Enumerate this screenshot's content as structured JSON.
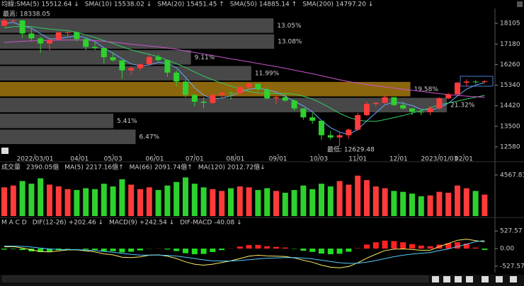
{
  "chart_data": [
    {
      "type": "candlestick",
      "header": "均線:",
      "series": [
        {
          "name": "SMA(5)",
          "reading": "15512.64 ↓",
          "color": "#ffffff"
        },
        {
          "name": "SMA(10)",
          "reading": "15538.02 ↓",
          "color": "#ff66cc"
        },
        {
          "name": "SMA(20)",
          "reading": "15451.45 ↑",
          "color": "#66aaff",
          "values": [
            18100,
            18150,
            17990,
            17890,
            17630,
            17410,
            17420,
            17490,
            17540,
            17460,
            17290,
            17010,
            16770,
            16520,
            16290,
            16200,
            16240,
            16360,
            16310,
            16120,
            15690,
            15230,
            14890,
            14740,
            14760,
            14860,
            15030,
            15160,
            15200,
            15140,
            15030,
            14840,
            14630,
            14410,
            14150,
            13760,
            13440,
            13240,
            13140,
            13360,
            13740,
            14100,
            14460,
            14580,
            14530,
            14430,
            14260,
            14230,
            14330,
            14530,
            14860,
            15160,
            15340,
            15451.45
          ]
        },
        {
          "name": "SMA(50)",
          "reading": "14885.14 ↑",
          "color": "#33cc66",
          "values": [
            17900,
            17950,
            17970,
            17960,
            17900,
            17850,
            17810,
            17780,
            17700,
            17590,
            17470,
            17330,
            17210,
            17050,
            16920,
            16810,
            16720,
            16610,
            16460,
            16300,
            16130,
            15930,
            15740,
            15580,
            15430,
            15300,
            15170,
            15060,
            14990,
            14970,
            14970,
            14970,
            14940,
            14840,
            14720,
            14530,
            14310,
            14080,
            13900,
            13780,
            13730,
            13720,
            13800,
            13890,
            13980,
            14090,
            14200,
            14330,
            14460,
            14540,
            14630,
            14720,
            14800,
            14885.14
          ]
        },
        {
          "name": "SMA(200)",
          "reading": "14797.20 ↓",
          "color": "#cc55cc",
          "values": [
            17250,
            17280,
            17300,
            17320,
            17330,
            17340,
            17350,
            17360,
            17360,
            17350,
            17330,
            17300,
            17260,
            17220,
            17170,
            17130,
            17090,
            17050,
            17000,
            16940,
            16870,
            16800,
            16730,
            16660,
            16590,
            16520,
            16450,
            16380,
            16310,
            16240,
            16170,
            16090,
            16010,
            15930,
            15850,
            15760,
            15670,
            15580,
            15500,
            15430,
            15370,
            15310,
            15260,
            15210,
            15160,
            15110,
            15060,
            15010,
            14960,
            14920,
            14880,
            14850,
            14820,
            14797.2
          ]
        }
      ],
      "open": [
        18000,
        18230,
        18232,
        17650,
        17430,
        17200,
        17370,
        17690,
        17700,
        17400,
        17050,
        17000,
        16590,
        16450,
        16000,
        16100,
        16270,
        16600,
        16460,
        15900,
        15500,
        14900,
        14600,
        14550,
        14900,
        15000,
        14980,
        15250,
        15400,
        15150,
        14750,
        14800,
        14650,
        14300,
        13900,
        13750,
        13100,
        13000,
        13100,
        13350,
        14000,
        14500,
        14550,
        14800,
        14450,
        14300,
        14150,
        14137,
        14300,
        14750,
        14930,
        15450,
        15500,
        15480
      ],
      "high": [
        18338.05,
        18290,
        18260,
        17900,
        17500,
        17400,
        17750,
        17800,
        17740,
        17450,
        17250,
        17000,
        16800,
        16450,
        16200,
        16300,
        16700,
        16700,
        16460,
        16000,
        15600,
        14950,
        14800,
        14960,
        15050,
        15050,
        15300,
        15460,
        15400,
        15250,
        14850,
        15000,
        14700,
        14300,
        14100,
        13750,
        13300,
        13200,
        13400,
        14100,
        14600,
        14600,
        14900,
        14800,
        14600,
        14300,
        14250,
        14400,
        14800,
        15000,
        15500,
        15600,
        15560,
        15570
      ],
      "low": [
        17950,
        18100,
        17450,
        17300,
        16780,
        16900,
        17350,
        17500,
        17300,
        16900,
        16900,
        16300,
        16400,
        15620,
        15800,
        16000,
        16250,
        16400,
        15700,
        15300,
        14800,
        14400,
        14300,
        14500,
        14750,
        14700,
        14900,
        15200,
        15050,
        14700,
        14500,
        14600,
        14200,
        13800,
        13600,
        12900,
        12900,
        12629.48,
        12950,
        13300,
        13950,
        14400,
        14500,
        14400,
        14250,
        14000,
        14000,
        14000,
        14250,
        14700,
        14900,
        15300,
        15400,
        15450
      ],
      "close": [
        18230,
        18232,
        17650,
        17430,
        17200,
        17370,
        17690,
        17700,
        17400,
        17050,
        17000,
        16590,
        16450,
        16000,
        16100,
        16270,
        16600,
        16460,
        15900,
        15500,
        14900,
        14600,
        14550,
        14900,
        15000,
        14980,
        15250,
        15400,
        15150,
        14750,
        14800,
        14650,
        14300,
        13900,
        13750,
        13100,
        13000,
        13100,
        13350,
        14000,
        14500,
        14550,
        14800,
        14450,
        14300,
        14150,
        14137,
        14300,
        14750,
        14930,
        15450,
        15500,
        15480,
        15512.64
      ],
      "up_color": "#ff3b3b",
      "down_color": "#2ed12e",
      "ylim": [
        12264,
        18768
      ],
      "yticks": [
        12580,
        13500,
        14420,
        15340,
        16260,
        17180,
        18105
      ],
      "xticks": [
        {
          "value": 3.4,
          "label": "2022/03/01"
        },
        {
          "value": 8.3,
          "label": "04/01"
        },
        {
          "value": 12.0,
          "label": "05/03"
        },
        {
          "value": 16.6,
          "label": "06/01"
        },
        {
          "value": 21.0,
          "label": "07/01"
        },
        {
          "value": 25.5,
          "label": "08/01"
        },
        {
          "value": 30.2,
          "label": "09/01"
        },
        {
          "value": 34.7,
          "label": "10/03"
        },
        {
          "value": 39.0,
          "label": "11/01"
        },
        {
          "value": 43.5,
          "label": "12/01"
        },
        {
          "value": 48.0,
          "label": "2023/01/03"
        },
        {
          "value": 50.7,
          "label": "02/01"
        }
      ],
      "annotations": [
        {
          "text": "最高: 18338.05",
          "color": "#ff4444"
        },
        {
          "text": "最低: 12629.48",
          "color": "#33dd33"
        }
      ],
      "profile": {
        "range": [
          12674,
          18357
        ],
        "values": [
          6.47,
          5.41,
          21.32,
          19.58,
          11.99,
          9.11,
          13.08,
          13.05
        ],
        "value_labels": [
          "6.47%",
          "5.41%",
          "21.32%",
          "19.58%",
          "11.99%",
          "9.11%",
          "13.08%",
          "13.05%"
        ],
        "colors": [
          "#555555",
          "#555555",
          "#555555",
          "#a4780f",
          "#555555",
          "#555555",
          "#555555",
          "#555555"
        ]
      }
    },
    {
      "type": "volume",
      "header": "成交量",
      "current": "2390.05億",
      "current_color": "#ffdd33",
      "legend": [
        {
          "name": "MA(5)",
          "reading": "2217.16億↑",
          "color": "#ffdd33"
        },
        {
          "name": "MA(66)",
          "reading": "2091.74億↑",
          "color": "#44ccff"
        },
        {
          "name": "MA(120)",
          "reading": "2012.72億↓",
          "color": "#cc66ff"
        }
      ],
      "values": [
        3200,
        3400,
        3900,
        3600,
        4200,
        3500,
        3300,
        3000,
        2900,
        3100,
        3000,
        3600,
        3300,
        4100,
        3500,
        3000,
        3200,
        2900,
        3400,
        3800,
        4300,
        3600,
        3200,
        3000,
        2800,
        3100,
        3300,
        3200,
        2900,
        3100,
        2800,
        2600,
        2900,
        3400,
        3000,
        3600,
        3300,
        3900,
        3500,
        4500,
        4000,
        3300,
        3100,
        2800,
        2700,
        2500,
        2200,
        2300,
        2700,
        2600,
        3400,
        3100,
        2800,
        2390.05
      ],
      "ylim": [
        0,
        5500
      ],
      "yticks": [
        4567.83
      ]
    },
    {
      "type": "macd",
      "header": "M A C D",
      "series": [
        {
          "name": "DIF(12-26)",
          "reading": "+202.46 ↓",
          "color": "#ffee66",
          "values": [
            50,
            60,
            20,
            -40,
            -90,
            -100,
            -70,
            -40,
            -40,
            -70,
            -100,
            -160,
            -190,
            -260,
            -270,
            -250,
            -200,
            -190,
            -230,
            -300,
            -400,
            -470,
            -500,
            -470,
            -420,
            -370,
            -300,
            -230,
            -200,
            -220,
            -230,
            -240,
            -280,
            -350,
            -410,
            -500,
            -560,
            -580,
            -540,
            -430,
            -290,
            -170,
            -60,
            -20,
            -10,
            -30,
            -50,
            -50,
            60,
            150,
            250,
            280,
            240,
            202.46
          ]
        },
        {
          "name": "MACD(9)",
          "reading": "+242.54 ↓",
          "color": "#55ccff",
          "values": [
            80,
            75,
            65,
            45,
            15,
            -10,
            -25,
            -30,
            -35,
            -45,
            -60,
            -85,
            -110,
            -145,
            -175,
            -195,
            -195,
            -195,
            -205,
            -225,
            -260,
            -300,
            -340,
            -365,
            -375,
            -375,
            -360,
            -335,
            -310,
            -290,
            -280,
            -270,
            -270,
            -285,
            -310,
            -350,
            -390,
            -425,
            -445,
            -440,
            -410,
            -360,
            -300,
            -245,
            -200,
            -165,
            -140,
            -120,
            -60,
            -10,
            60,
            130,
            210,
            242.54
          ]
        }
      ],
      "osc_name": "DIF-MACD",
      "osc_reading": "-40.08 ↓",
      "osc_color": "#ff55ff",
      "osc": [
        -30,
        -15,
        -45,
        -85,
        -105,
        -90,
        -45,
        -10,
        -5,
        -25,
        -40,
        -75,
        -80,
        -115,
        -95,
        -55,
        -5,
        5,
        -25,
        -75,
        -140,
        -170,
        -160,
        -105,
        -45,
        5,
        60,
        105,
        110,
        70,
        50,
        30,
        -10,
        -65,
        -100,
        -150,
        -170,
        -155,
        -95,
        10,
        120,
        190,
        240,
        225,
        190,
        135,
        90,
        70,
        120,
        160,
        190,
        150,
        30,
        -40.08
      ],
      "pos_color": "#ff2222",
      "neg_color": "#22dd22",
      "ylim": [
        -680,
        680
      ],
      "yticks": [
        527.57,
        {
          "value": 0,
          "label": "0.00"
        },
        -527.57
      ]
    }
  ]
}
